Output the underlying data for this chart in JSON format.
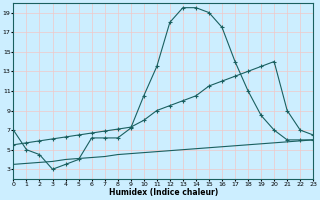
{
  "xlabel": "Humidex (Indice chaleur)",
  "bg_color": "#cceeff",
  "grid_color": "#f0c8c8",
  "line_color": "#1a6060",
  "xmin": 0,
  "xmax": 23,
  "ymin": 2,
  "ymax": 20,
  "yticks": [
    3,
    5,
    7,
    9,
    11,
    13,
    15,
    17,
    19
  ],
  "xticks": [
    0,
    1,
    2,
    3,
    4,
    5,
    6,
    7,
    8,
    9,
    10,
    11,
    12,
    13,
    14,
    15,
    16,
    17,
    18,
    19,
    20,
    21,
    22,
    23
  ],
  "curve1_x": [
    0,
    1,
    2,
    3,
    4,
    5,
    6,
    7,
    8,
    9,
    10,
    11,
    12,
    13,
    14,
    15,
    16,
    17,
    18,
    19,
    20,
    21,
    22,
    23
  ],
  "curve1_y": [
    7.0,
    5.0,
    4.5,
    3.0,
    3.5,
    4.0,
    6.2,
    6.2,
    6.2,
    7.2,
    10.5,
    13.5,
    18.0,
    19.5,
    19.5,
    19.0,
    17.5,
    14.0,
    11.0,
    8.5,
    7.0,
    6.0,
    6.0,
    6.0
  ],
  "curve2_x": [
    0,
    1,
    2,
    3,
    4,
    5,
    6,
    7,
    8,
    9,
    10,
    11,
    12,
    13,
    14,
    15,
    16,
    17,
    18,
    19,
    20,
    21,
    22,
    23
  ],
  "curve2_y": [
    5.5,
    5.7,
    5.9,
    6.1,
    6.3,
    6.5,
    6.7,
    6.9,
    7.1,
    7.3,
    8.0,
    9.0,
    9.5,
    10.0,
    10.5,
    11.5,
    12.0,
    12.5,
    13.0,
    13.5,
    14.0,
    9.0,
    7.0,
    6.5
  ],
  "curve3_x": [
    0,
    1,
    2,
    3,
    4,
    5,
    6,
    7,
    8,
    9,
    10,
    11,
    12,
    13,
    14,
    15,
    16,
    17,
    18,
    19,
    20,
    21,
    22,
    23
  ],
  "curve3_y": [
    3.5,
    3.6,
    3.7,
    3.8,
    4.0,
    4.1,
    4.2,
    4.3,
    4.5,
    4.6,
    4.7,
    4.8,
    4.9,
    5.0,
    5.1,
    5.2,
    5.3,
    5.4,
    5.5,
    5.6,
    5.7,
    5.8,
    5.9,
    6.0
  ]
}
